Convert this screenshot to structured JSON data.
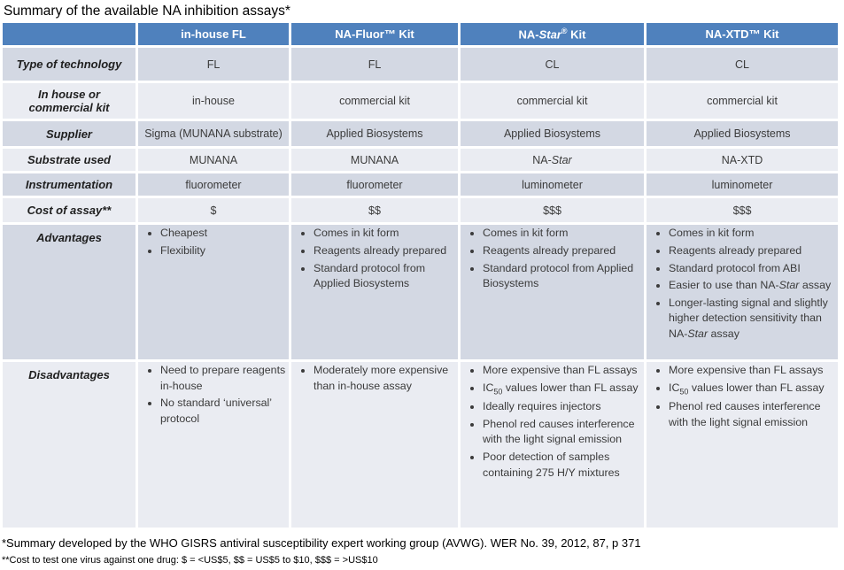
{
  "title": "Summary of the available NA inhibition assays*",
  "colors": {
    "header_bg": "#4f81bd",
    "band_dark": "#d3d8e3",
    "band_light": "#eaecf2",
    "header_text": "#ffffff"
  },
  "table": {
    "columns": [
      "",
      "in-house FL",
      "NA-Fluor™ Kit",
      "NA-*Star*^®^ Kit",
      "NA-XTD™ Kit"
    ],
    "rows": [
      {
        "label": "Type of technology",
        "type": "text",
        "values": [
          "FL",
          "FL",
          "CL",
          "CL"
        ]
      },
      {
        "label": "In house or commercial kit",
        "type": "text",
        "values": [
          "in-house",
          "commercial kit",
          "commercial kit",
          "commercial kit"
        ]
      },
      {
        "label": "Supplier",
        "type": "text",
        "values": [
          "Sigma (MUNANA substrate)",
          "Applied Biosystems",
          "Applied Biosystems",
          "Applied Biosystems"
        ]
      },
      {
        "label": "Substrate used",
        "type": "text",
        "values": [
          "MUNANA",
          "MUNANA",
          "NA-*Star*",
          "NA-XTD"
        ]
      },
      {
        "label": "Instrumentation",
        "type": "text",
        "values": [
          "fluorometer",
          "fluorometer",
          "luminometer",
          "luminometer"
        ]
      },
      {
        "label": "Cost of assay**",
        "type": "text",
        "values": [
          "$",
          "$$",
          "$$$",
          "$$$"
        ]
      },
      {
        "label": "Advantages",
        "type": "list",
        "values": [
          [
            "Cheapest",
            "Flexibility"
          ],
          [
            "Comes in kit form",
            "Reagents already prepared",
            "Standard protocol from Applied Biosystems"
          ],
          [
            "Comes in kit form",
            "Reagents already prepared",
            "Standard protocol from Applied Biosystems"
          ],
          [
            "Comes in kit form",
            "Reagents already prepared",
            "Standard protocol from ABI",
            "Easier to use than NA-*Star* assay",
            "Longer-lasting signal and slightly higher detection sensitivity than NA-*Star* assay"
          ]
        ]
      },
      {
        "label": "Disadvantages",
        "type": "list",
        "values": [
          [
            "Need to prepare reagents in-house",
            "No standard ‘universal’ protocol"
          ],
          [
            "Moderately more expensive than in-house assay"
          ],
          [
            "More expensive than FL assays",
            "IC~50~ values lower than FL assay",
            "Ideally requires injectors",
            "Phenol red causes interference with the light signal emission",
            "Poor detection of samples containing 275 H/Y mixtures"
          ],
          [
            "More expensive than FL assays",
            "IC~50~ values lower than FL assay",
            "Phenol red causes interference with the light signal emission"
          ]
        ]
      }
    ]
  },
  "footnotes": [
    "*Summary developed by the WHO GISRS antiviral susceptibility expert working group (AVWG). WER No. 39, 2012, 87, p 371",
    "**Cost to test one virus against one drug: $ = <US$5, $$ = US$5 to $10, $$$ = >US$10"
  ]
}
